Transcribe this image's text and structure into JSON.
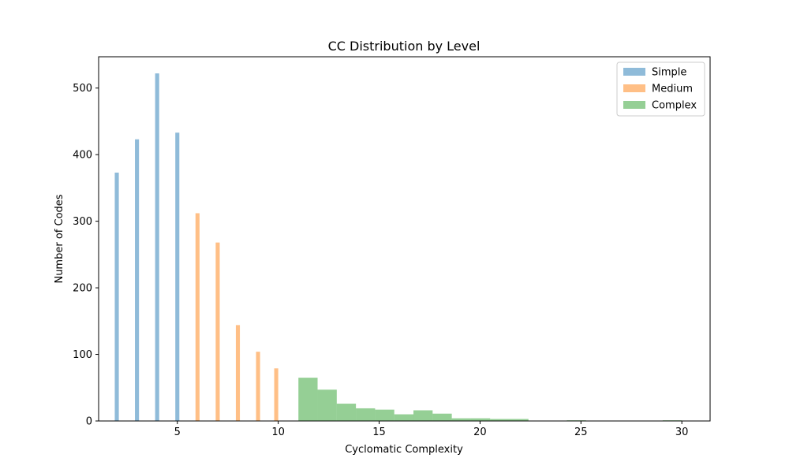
{
  "chart_data": {
    "type": "bar",
    "title": "CC Distribution by Level",
    "xlabel": "Cyclomatic Complexity",
    "ylabel": "Number of Codes",
    "xlim": [
      1.1,
      31.4
    ],
    "ylim": [
      0,
      547
    ],
    "xticks": [
      5,
      10,
      15,
      20,
      25,
      30
    ],
    "yticks": [
      0,
      100,
      200,
      300,
      400,
      500
    ],
    "grid": false,
    "legend_position": "top-right",
    "series": [
      {
        "name": "Simple",
        "color": "#1f77b4",
        "alpha": 0.5,
        "bins": [
          {
            "x0": 1.9,
            "x1": 2.1,
            "value": 373
          },
          {
            "x0": 2.9,
            "x1": 3.1,
            "value": 423
          },
          {
            "x0": 3.9,
            "x1": 4.1,
            "value": 522
          },
          {
            "x0": 4.9,
            "x1": 5.1,
            "value": 433
          }
        ]
      },
      {
        "name": "Medium",
        "color": "#ff7f0e",
        "alpha": 0.5,
        "bins": [
          {
            "x0": 5.9,
            "x1": 6.1,
            "value": 312
          },
          {
            "x0": 6.9,
            "x1": 7.1,
            "value": 268
          },
          {
            "x0": 7.9,
            "x1": 8.1,
            "value": 144
          },
          {
            "x0": 8.9,
            "x1": 9.1,
            "value": 104
          },
          {
            "x0": 9.8,
            "x1": 10.0,
            "value": 79
          }
        ]
      },
      {
        "name": "Complex",
        "color": "#2ca02c",
        "alpha": 0.5,
        "bins": [
          {
            "x0": 11.0,
            "x1": 11.95,
            "value": 65
          },
          {
            "x0": 11.95,
            "x1": 12.9,
            "value": 47
          },
          {
            "x0": 12.9,
            "x1": 13.85,
            "value": 26
          },
          {
            "x0": 13.85,
            "x1": 14.8,
            "value": 19
          },
          {
            "x0": 14.8,
            "x1": 15.75,
            "value": 17
          },
          {
            "x0": 15.75,
            "x1": 16.7,
            "value": 10
          },
          {
            "x0": 16.7,
            "x1": 17.65,
            "value": 16
          },
          {
            "x0": 17.65,
            "x1": 18.6,
            "value": 11
          },
          {
            "x0": 18.6,
            "x1": 19.55,
            "value": 4
          },
          {
            "x0": 19.55,
            "x1": 20.5,
            "value": 4
          },
          {
            "x0": 20.5,
            "x1": 21.45,
            "value": 3
          },
          {
            "x0": 21.45,
            "x1": 22.4,
            "value": 3
          },
          {
            "x0": 22.4,
            "x1": 23.35,
            "value": 0
          },
          {
            "x0": 23.35,
            "x1": 24.3,
            "value": 0
          },
          {
            "x0": 24.3,
            "x1": 25.25,
            "value": 1
          },
          {
            "x0": 25.25,
            "x1": 26.2,
            "value": 0
          },
          {
            "x0": 26.2,
            "x1": 27.15,
            "value": 0
          },
          {
            "x0": 27.15,
            "x1": 28.1,
            "value": 0
          },
          {
            "x0": 28.1,
            "x1": 29.05,
            "value": 0
          },
          {
            "x0": 29.05,
            "x1": 30.0,
            "value": 1
          }
        ]
      }
    ]
  }
}
